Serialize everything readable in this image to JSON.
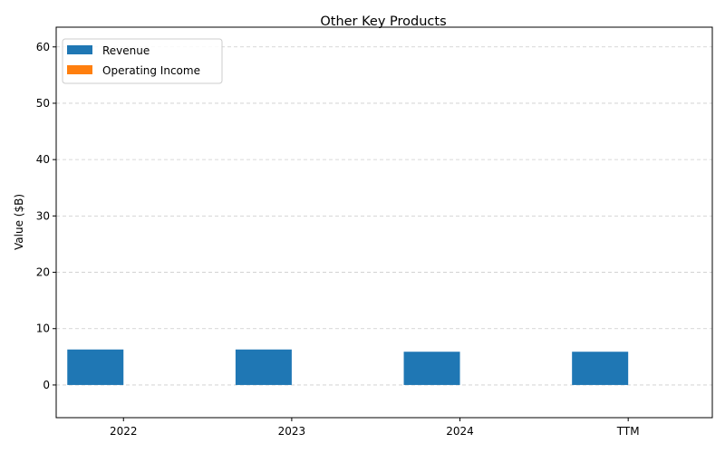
{
  "chart_data": {
    "type": "bar",
    "title": "Other Key Products",
    "xlabel": "",
    "ylabel": "Value ($B)",
    "categories": [
      "2022",
      "2023",
      "2024",
      "TTM"
    ],
    "series": [
      {
        "name": "Revenue",
        "color": "#1f77b4",
        "values": [
          6.3,
          6.3,
          5.9,
          5.9
        ]
      },
      {
        "name": "Operating Income",
        "color": "#ff7f0e",
        "values": [
          0,
          0,
          0,
          0
        ]
      }
    ],
    "ylim": [
      -5.8,
      63.5
    ],
    "yticks": [
      0,
      10,
      20,
      30,
      40,
      50,
      60
    ],
    "grid": "y-dashed",
    "legend_position": "upper-left"
  }
}
